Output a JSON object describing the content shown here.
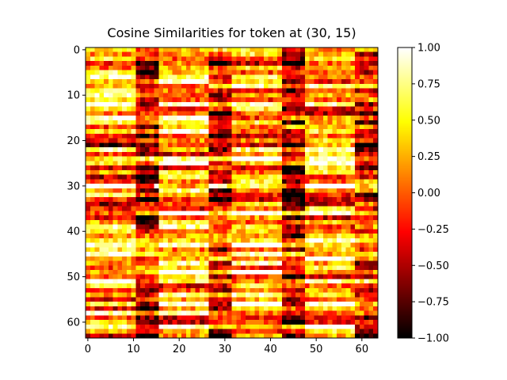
{
  "chart_data": {
    "type": "heatmap",
    "title": "Cosine Similarities for token at (30, 15)",
    "rows": 64,
    "cols": 64,
    "x_ticks": [
      0,
      10,
      20,
      30,
      40,
      50,
      60
    ],
    "y_ticks": [
      0,
      10,
      20,
      30,
      40,
      50,
      60
    ],
    "xlim": [
      -0.5,
      63.5
    ],
    "ylim": [
      63.5,
      -0.5
    ],
    "colormap": "hot",
    "color_range": [
      -1.0,
      1.0
    ],
    "colorbar_ticks": [
      "1.00",
      "0.75",
      "0.50",
      "0.25",
      "0.00",
      "−0.25",
      "−0.50",
      "−0.75",
      "−1.00"
    ],
    "colorbar_tick_values": [
      1.0,
      0.75,
      0.5,
      0.25,
      0.0,
      -0.25,
      -0.5,
      -0.75,
      -1.0
    ],
    "column_bands": [
      {
        "start": 0,
        "end": 10,
        "bias": 0.25
      },
      {
        "start": 11,
        "end": 15,
        "bias": -0.35
      },
      {
        "start": 16,
        "end": 26,
        "bias": 0.35
      },
      {
        "start": 27,
        "end": 31,
        "bias": -0.25
      },
      {
        "start": 32,
        "end": 42,
        "bias": 0.3
      },
      {
        "start": 43,
        "end": 47,
        "bias": -0.35
      },
      {
        "start": 48,
        "end": 58,
        "bias": 0.3
      },
      {
        "start": 59,
        "end": 63,
        "bias": -0.2
      }
    ]
  }
}
